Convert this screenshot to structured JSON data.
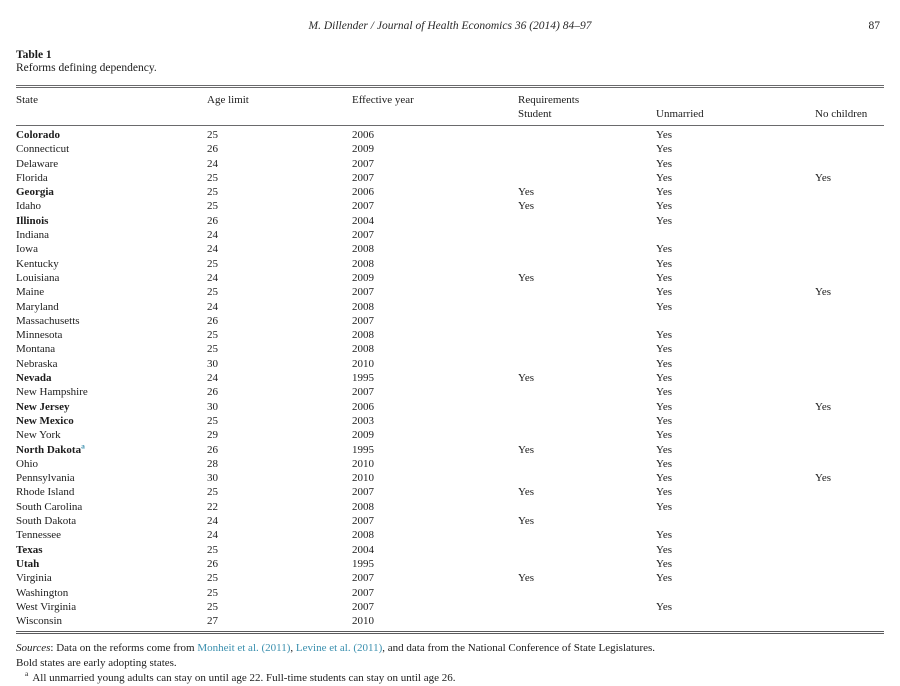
{
  "page": {
    "running_head": "M. Dillender / Journal of Health Economics 36 (2014) 84–97",
    "page_number": "87"
  },
  "table": {
    "label": "Table 1",
    "caption": "Reforms defining dependency.",
    "columns": {
      "state": "State",
      "age_limit": "Age limit",
      "effective_year": "Effective year",
      "requirements_group": "Requirements",
      "student": "Student",
      "unmarried": "Unmarried",
      "no_children": "No children"
    },
    "rows": [
      {
        "state": "Colorado",
        "bold": true,
        "footnote": "",
        "age": "25",
        "year": "2006",
        "student": "",
        "unmarried": "Yes",
        "no_children": ""
      },
      {
        "state": "Connecticut",
        "bold": false,
        "footnote": "",
        "age": "26",
        "year": "2009",
        "student": "",
        "unmarried": "Yes",
        "no_children": ""
      },
      {
        "state": "Delaware",
        "bold": false,
        "footnote": "",
        "age": "24",
        "year": "2007",
        "student": "",
        "unmarried": "Yes",
        "no_children": ""
      },
      {
        "state": "Florida",
        "bold": false,
        "footnote": "",
        "age": "25",
        "year": "2007",
        "student": "",
        "unmarried": "Yes",
        "no_children": "Yes"
      },
      {
        "state": "Georgia",
        "bold": true,
        "footnote": "",
        "age": "25",
        "year": "2006",
        "student": "Yes",
        "unmarried": "Yes",
        "no_children": ""
      },
      {
        "state": "Idaho",
        "bold": false,
        "footnote": "",
        "age": "25",
        "year": "2007",
        "student": "Yes",
        "unmarried": "Yes",
        "no_children": ""
      },
      {
        "state": "Illinois",
        "bold": true,
        "footnote": "",
        "age": "26",
        "year": "2004",
        "student": "",
        "unmarried": "Yes",
        "no_children": ""
      },
      {
        "state": "Indiana",
        "bold": false,
        "footnote": "",
        "age": "24",
        "year": "2007",
        "student": "",
        "unmarried": "",
        "no_children": ""
      },
      {
        "state": "Iowa",
        "bold": false,
        "footnote": "",
        "age": "24",
        "year": "2008",
        "student": "",
        "unmarried": "Yes",
        "no_children": ""
      },
      {
        "state": "Kentucky",
        "bold": false,
        "footnote": "",
        "age": "25",
        "year": "2008",
        "student": "",
        "unmarried": "Yes",
        "no_children": ""
      },
      {
        "state": "Louisiana",
        "bold": false,
        "footnote": "",
        "age": "24",
        "year": "2009",
        "student": "Yes",
        "unmarried": "Yes",
        "no_children": ""
      },
      {
        "state": "Maine",
        "bold": false,
        "footnote": "",
        "age": "25",
        "year": "2007",
        "student": "",
        "unmarried": "Yes",
        "no_children": "Yes"
      },
      {
        "state": "Maryland",
        "bold": false,
        "footnote": "",
        "age": "24",
        "year": "2008",
        "student": "",
        "unmarried": "Yes",
        "no_children": ""
      },
      {
        "state": "Massachusetts",
        "bold": false,
        "footnote": "",
        "age": "26",
        "year": "2007",
        "student": "",
        "unmarried": "",
        "no_children": ""
      },
      {
        "state": "Minnesota",
        "bold": false,
        "footnote": "",
        "age": "25",
        "year": "2008",
        "student": "",
        "unmarried": "Yes",
        "no_children": ""
      },
      {
        "state": "Montana",
        "bold": false,
        "footnote": "",
        "age": "25",
        "year": "2008",
        "student": "",
        "unmarried": "Yes",
        "no_children": ""
      },
      {
        "state": "Nebraska",
        "bold": false,
        "footnote": "",
        "age": "30",
        "year": "2010",
        "student": "",
        "unmarried": "Yes",
        "no_children": ""
      },
      {
        "state": "Nevada",
        "bold": true,
        "footnote": "",
        "age": "24",
        "year": "1995",
        "student": "Yes",
        "unmarried": "Yes",
        "no_children": ""
      },
      {
        "state": "New Hampshire",
        "bold": false,
        "footnote": "",
        "age": "26",
        "year": "2007",
        "student": "",
        "unmarried": "Yes",
        "no_children": ""
      },
      {
        "state": "New Jersey",
        "bold": true,
        "footnote": "",
        "age": "30",
        "year": "2006",
        "student": "",
        "unmarried": "Yes",
        "no_children": "Yes"
      },
      {
        "state": "New Mexico",
        "bold": true,
        "footnote": "",
        "age": "25",
        "year": "2003",
        "student": "",
        "unmarried": "Yes",
        "no_children": ""
      },
      {
        "state": "New York",
        "bold": false,
        "footnote": "",
        "age": "29",
        "year": "2009",
        "student": "",
        "unmarried": "Yes",
        "no_children": ""
      },
      {
        "state": "North Dakota",
        "bold": true,
        "footnote": "a",
        "age": "26",
        "year": "1995",
        "student": "Yes",
        "unmarried": "Yes",
        "no_children": ""
      },
      {
        "state": "Ohio",
        "bold": false,
        "footnote": "",
        "age": "28",
        "year": "2010",
        "student": "",
        "unmarried": "Yes",
        "no_children": ""
      },
      {
        "state": "Pennsylvania",
        "bold": false,
        "footnote": "",
        "age": "30",
        "year": "2010",
        "student": "",
        "unmarried": "Yes",
        "no_children": "Yes"
      },
      {
        "state": "Rhode Island",
        "bold": false,
        "footnote": "",
        "age": "25",
        "year": "2007",
        "student": "Yes",
        "unmarried": "Yes",
        "no_children": ""
      },
      {
        "state": "South Carolina",
        "bold": false,
        "footnote": "",
        "age": "22",
        "year": "2008",
        "student": "",
        "unmarried": "Yes",
        "no_children": ""
      },
      {
        "state": "South Dakota",
        "bold": false,
        "footnote": "",
        "age": "24",
        "year": "2007",
        "student": "Yes",
        "unmarried": "",
        "no_children": ""
      },
      {
        "state": "Tennessee",
        "bold": false,
        "footnote": "",
        "age": "24",
        "year": "2008",
        "student": "",
        "unmarried": "Yes",
        "no_children": ""
      },
      {
        "state": "Texas",
        "bold": true,
        "footnote": "",
        "age": "25",
        "year": "2004",
        "student": "",
        "unmarried": "Yes",
        "no_children": ""
      },
      {
        "state": "Utah",
        "bold": true,
        "footnote": "",
        "age": "26",
        "year": "1995",
        "student": "",
        "unmarried": "Yes",
        "no_children": ""
      },
      {
        "state": "Virginia",
        "bold": false,
        "footnote": "",
        "age": "25",
        "year": "2007",
        "student": "Yes",
        "unmarried": "Yes",
        "no_children": ""
      },
      {
        "state": "Washington",
        "bold": false,
        "footnote": "",
        "age": "25",
        "year": "2007",
        "student": "",
        "unmarried": "",
        "no_children": ""
      },
      {
        "state": "West Virginia",
        "bold": false,
        "footnote": "",
        "age": "25",
        "year": "2007",
        "student": "",
        "unmarried": "Yes",
        "no_children": ""
      },
      {
        "state": "Wisconsin",
        "bold": false,
        "footnote": "",
        "age": "27",
        "year": "2010",
        "student": "",
        "unmarried": "",
        "no_children": ""
      }
    ]
  },
  "notes": {
    "sources_label": "Sources",
    "sources_pre": ": Data on the reforms come from ",
    "citation_1": "Monheit et al. (2011)",
    "separator_1": ", ",
    "citation_2": "Levine et al. (2011)",
    "sources_post": ", and data from the National Conference of State Legislatures.",
    "bold_note": "Bold states are early adopting states.",
    "footnote_marker": "a",
    "footnote_text": "All unmarried young adults can stay on until age 22. Full-time students can stay on until age 26."
  },
  "colors": {
    "citation_link": "#3a8fae",
    "body_text": "#1c1c1c",
    "rule": "#6a6a6c"
  }
}
